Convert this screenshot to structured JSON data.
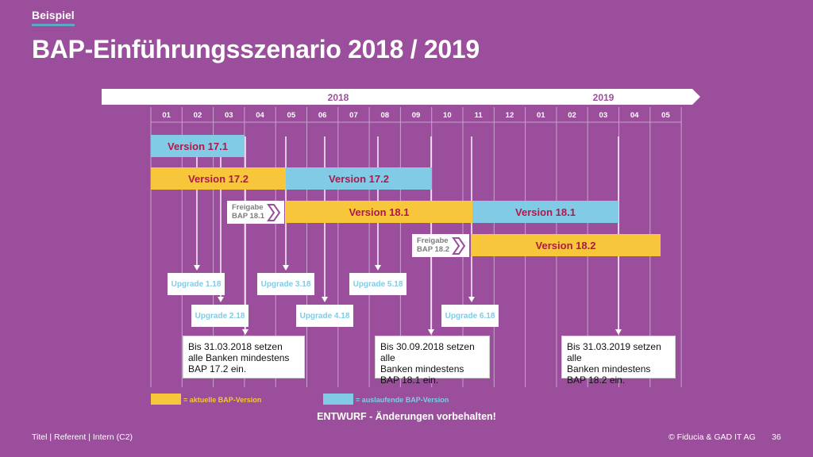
{
  "header": {
    "tag": "Beispiel",
    "title": "BAP-Einführungsszenario 2018 / 2019"
  },
  "timeline": {
    "years": [
      {
        "label": "2018"
      },
      {
        "label": "2019"
      }
    ],
    "months": [
      "01",
      "02",
      "03",
      "04",
      "05",
      "06",
      "07",
      "08",
      "09",
      "10",
      "11",
      "12",
      "01",
      "02",
      "03",
      "04",
      "05"
    ]
  },
  "bars": [
    {
      "label": "Version 17.1",
      "color": "blue"
    },
    {
      "label": "Version 17.2",
      "color": "yellow"
    },
    {
      "label": "Version 17.2",
      "color": "blue"
    },
    {
      "label": "Version 18.1",
      "color": "yellow"
    },
    {
      "label": "Version 18.1",
      "color": "blue"
    },
    {
      "label": "Version 18.2",
      "color": "yellow"
    }
  ],
  "freigabe": [
    {
      "line1": "Freigabe",
      "line2": "BAP 18.1"
    },
    {
      "line1": "Freigabe",
      "line2": "BAP 18.2"
    }
  ],
  "upgrades": [
    {
      "label": "Upgrade 1.18"
    },
    {
      "label": "Upgrade 2.18"
    },
    {
      "label": "Upgrade 3.18"
    },
    {
      "label": "Upgrade 4.18"
    },
    {
      "label": "Upgrade 5.18"
    },
    {
      "label": "Upgrade 6.18"
    }
  ],
  "notes": [
    {
      "lines": [
        "Bis 31.03.2018 setzen",
        "alle Banken mindestens",
        "BAP 17.2 ein."
      ]
    },
    {
      "lines": [
        "Bis 30.09.2018 setzen alle",
        "Banken mindestens",
        "BAP 18.1 ein."
      ]
    },
    {
      "lines": [
        "Bis 31.03.2019 setzen alle",
        "Banken mindestens",
        "BAP 18.2 ein."
      ]
    }
  ],
  "legend": {
    "current": "= aktuelle BAP-Version",
    "expiring": "= auslaufende BAP-Version"
  },
  "draft_notice": "ENTWURF - Änderungen vorbehalten!",
  "footer": {
    "left": "Titel | Referent | Intern (C2)",
    "right": "© Fiducia & GAD IT AG",
    "page": "36"
  },
  "colors": {
    "background": "#9b4e9b",
    "current_version": "#f7c63b",
    "expiring_version": "#82cbe6",
    "version_text": "#b0184b",
    "tag_underline": "#5ea7c7"
  }
}
